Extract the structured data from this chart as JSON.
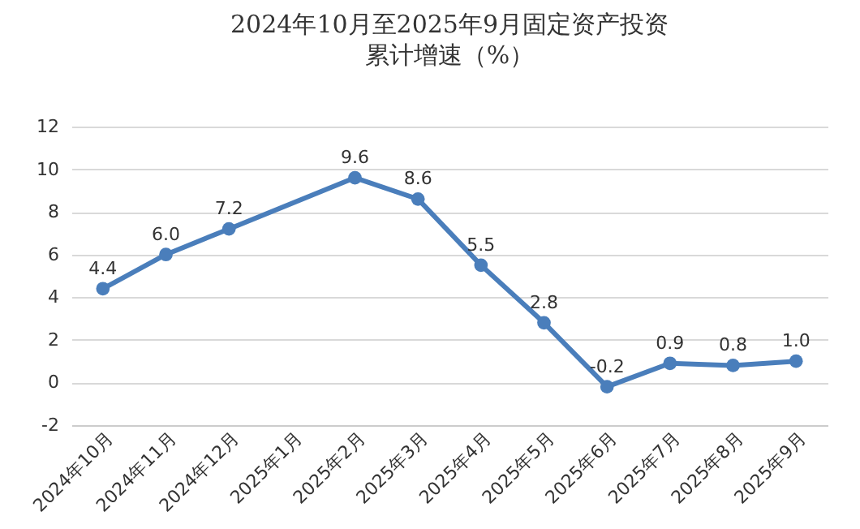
{
  "chart_data": {
    "type": "line",
    "title": "2024年10月至2025年9月固定资产投资",
    "subtitle": "累计增速（%）",
    "categories": [
      "2024年10月",
      "2024年11月",
      "2024年12月",
      "2025年1月",
      "2025年2月",
      "2025年3月",
      "2025年4月",
      "2025年5月",
      "2025年6月",
      "2025年7月",
      "2025年8月",
      "2025年9月"
    ],
    "series": [
      {
        "color": "#4a7ebb",
        "values": [
          4.4,
          6.0,
          7.2,
          null,
          9.6,
          8.6,
          5.5,
          2.8,
          -0.2,
          0.9,
          0.8,
          1.0
        ],
        "value_labels": [
          "4.4",
          "6.0",
          "7.2",
          null,
          "9.6",
          "8.6",
          "5.5",
          "2.8",
          "-0.2",
          "0.9",
          "0.8",
          "1.0"
        ]
      }
    ],
    "ylim": [
      -2,
      12
    ],
    "yticks": [
      -2,
      0,
      2,
      4,
      6,
      8,
      10,
      12
    ],
    "grid": "y",
    "marker": "circle",
    "line_style": "solid"
  }
}
